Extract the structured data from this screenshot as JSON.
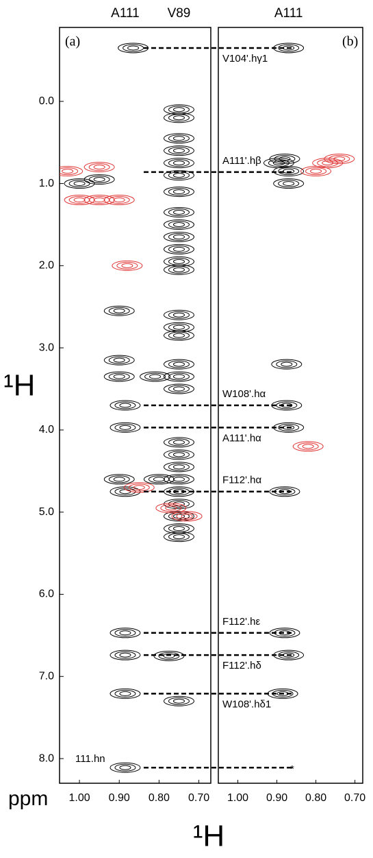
{
  "chart_data": [
    {
      "type": "contour",
      "panel_label": "(a)",
      "column_labels": [
        {
          "text": "A111",
          "x": 0.885
        },
        {
          "text": "V89",
          "x": 0.75
        }
      ],
      "xlim": [
        1.05,
        0.67
      ],
      "ylim": [
        -0.9,
        8.3
      ],
      "xticks": [
        {
          "value": 1.0,
          "label": "1.00"
        },
        {
          "value": 0.9,
          "label": "0.90"
        },
        {
          "value": 0.8,
          "label": "0.80"
        },
        {
          "value": 0.7,
          "label": "0.70"
        }
      ],
      "yticks": [
        {
          "value": 0,
          "label": "0.0"
        },
        {
          "value": 1,
          "label": "1.0"
        },
        {
          "value": 2,
          "label": "2.0"
        },
        {
          "value": 3,
          "label": "3.0"
        },
        {
          "value": 4,
          "label": "4.0"
        },
        {
          "value": 5,
          "label": "5.0"
        },
        {
          "value": 6,
          "label": "6.0"
        },
        {
          "value": 7,
          "label": "7.0"
        },
        {
          "value": 8,
          "label": "8.0"
        }
      ],
      "ylabel": "¹H",
      "xlabel": "¹H",
      "unit_label": "ppm",
      "series": [
        {
          "color": "#000000",
          "x": [
            0.865,
            0.75,
            0.75,
            0.75,
            0.75,
            0.75,
            0.75,
            0.75,
            0.75,
            0.75,
            0.75,
            0.75,
            0.75,
            0.75,
            0.75,
            0.75,
            0.75,
            0.75,
            0.75,
            0.75,
            0.75,
            0.75,
            0.75,
            0.75,
            0.75,
            0.75,
            0.75,
            0.75,
            0.75,
            0.885,
            0.885,
            0.885,
            0.885,
            0.885,
            0.885,
            0.885,
            0.775,
            0.75,
            0.9,
            0.9,
            0.9,
            0.81,
            0.9,
            0.8,
            1.0,
            0.95
          ],
          "values": [
            -0.65,
            0.1,
            0.2,
            0.45,
            0.6,
            0.75,
            0.9,
            1.1,
            1.35,
            1.5,
            1.65,
            1.8,
            1.95,
            2.05,
            2.6,
            2.75,
            2.85,
            3.2,
            3.35,
            3.5,
            4.15,
            4.3,
            4.45,
            4.6,
            4.75,
            4.9,
            5.05,
            5.2,
            5.3,
            3.7,
            3.97,
            4.75,
            6.47,
            6.74,
            7.21,
            8.11,
            6.75,
            7.3,
            2.55,
            3.15,
            3.35,
            3.35,
            4.6,
            4.6,
            1.0,
            0.95
          ]
        },
        {
          "color": "#e03030",
          "x": [
            0.88,
            0.85,
            0.77,
            0.73,
            1.0,
            0.95,
            0.9,
            1.03,
            0.95
          ],
          "values": [
            2.0,
            4.7,
            4.95,
            5.05,
            1.2,
            1.2,
            1.2,
            0.85,
            0.8
          ]
        }
      ],
      "annotations": [
        {
          "text": "V104'.hγ1",
          "y": -0.65,
          "placement": "below"
        },
        {
          "text": "A111'.hβ",
          "y": 0.86,
          "placement": "above"
        },
        {
          "text": "W108'.hα",
          "y": 3.7,
          "placement": "above"
        },
        {
          "text": "A111'.hα",
          "y": 3.97,
          "placement": "below"
        },
        {
          "text": "F112'.hα",
          "y": 4.75,
          "placement": "above"
        },
        {
          "text": "F112'.hε",
          "y": 6.47,
          "placement": "above"
        },
        {
          "text": "F112'.hδ",
          "y": 6.74,
          "placement": "below"
        },
        {
          "text": "W108'.hδ1",
          "y": 7.21,
          "placement": "below"
        },
        {
          "text": "111.hn",
          "y": 8.11,
          "placement": "left",
          "end_mark": "*"
        }
      ]
    },
    {
      "type": "contour",
      "panel_label": "(b)",
      "column_labels": [
        {
          "text": "A111",
          "x": 0.87
        }
      ],
      "xlim": [
        1.05,
        0.68
      ],
      "ylim": [
        -0.9,
        8.3
      ],
      "xticks": [
        {
          "value": 1.0,
          "label": "1.00"
        },
        {
          "value": 0.9,
          "label": "0.90"
        },
        {
          "value": 0.8,
          "label": "0.80"
        },
        {
          "value": 0.7,
          "label": "0.70"
        }
      ],
      "series": [
        {
          "color": "#000000",
          "x": [
            0.87,
            0.895,
            0.87,
            0.87,
            0.88,
            0.875,
            0.875,
            0.87,
            0.88,
            0.88,
            0.87,
            0.885
          ],
          "values": [
            -0.65,
            0.75,
            0.85,
            1.0,
            0.7,
            3.2,
            3.7,
            3.97,
            4.75,
            6.47,
            6.74,
            7.21
          ]
        },
        {
          "color": "#e03030",
          "x": [
            0.77,
            0.74,
            0.8,
            0.82
          ],
          "values": [
            0.75,
            0.7,
            0.85,
            4.2
          ]
        }
      ]
    }
  ]
}
